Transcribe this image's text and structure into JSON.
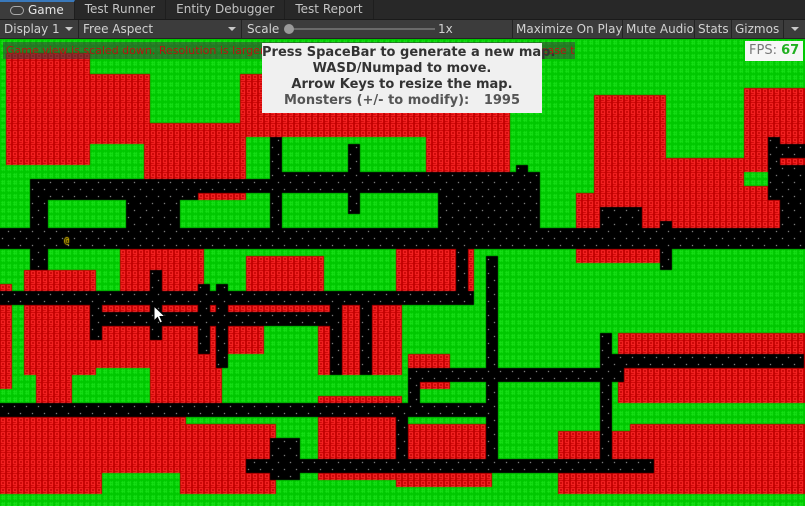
{
  "tabs": [
    {
      "label": "Game",
      "icon": "game-controller-icon",
      "active": true
    },
    {
      "label": "Test Runner"
    },
    {
      "label": "Entity Debugger"
    },
    {
      "label": "Test Report"
    }
  ],
  "toolbar": {
    "display": "Display 1",
    "aspect": "Free Aspect",
    "scale_label": "Scale",
    "scale_value": "1x",
    "maximize": "Maximize On Play",
    "mute": "Mute Audio",
    "stats": "Stats",
    "gizmos": "Gizmos"
  },
  "game": {
    "warning": "Game view is scaled down. Resolution is larger than the view. Switch to a lower resolution or increase the view size.",
    "info": {
      "line1": "Press SpaceBar to generate a new map.",
      "line2": "WASD/Numpad to move.",
      "line3": "Arrow Keys to resize the map.",
      "monsters_label": "Monsters (+/- to modify):",
      "monsters_value": "1995"
    },
    "fps_label": "FPS:",
    "fps_value": "67",
    "player_glyph": "@",
    "monster_glyph": "g",
    "wall_glyph": "#",
    "colors": {
      "wall": "#00c800",
      "wall_glyph": "#18e018",
      "monster_bg": "#c00000",
      "monster_glyph": "#ff2a2a",
      "floor": "#000000",
      "floor_dot": "#d8d8d8",
      "player": "#e8c800"
    }
  }
}
